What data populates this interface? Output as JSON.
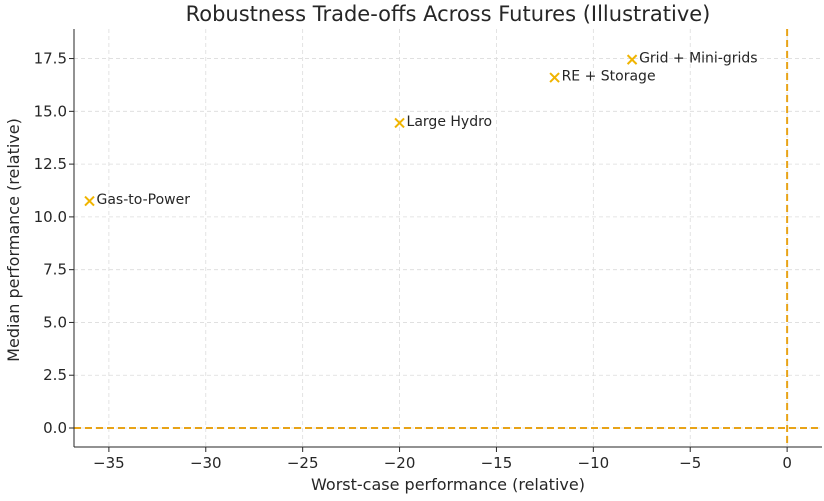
{
  "chart_data": {
    "type": "scatter",
    "title": "Robustness Trade-offs Across Futures (Illustrative)",
    "xlabel": "Worst-case performance (relative)",
    "ylabel": "Median performance (relative)",
    "xlim": [
      -36.8,
      1.8
    ],
    "ylim": [
      -0.9,
      18.9
    ],
    "xticks": [
      -35,
      -30,
      -25,
      -20,
      -15,
      -10,
      -5,
      0
    ],
    "xtick_labels": [
      "−35",
      "−30",
      "−25",
      "−20",
      "−15",
      "−10",
      "−5",
      "0"
    ],
    "yticks": [
      0,
      2.5,
      5,
      7.5,
      10,
      12.5,
      15,
      17.5
    ],
    "ytick_labels": [
      "0.0",
      "2.5",
      "5.0",
      "7.5",
      "10.0",
      "12.5",
      "15.0",
      "17.5"
    ],
    "grid": true,
    "marker": "x",
    "color": "#f0b400",
    "reference_lines": {
      "horizontal_y": 0,
      "vertical_x": 0,
      "color": "#e8a317",
      "style": "dashed"
    },
    "points": [
      {
        "label": "Gas-to-Power",
        "x": -36.0,
        "y": 10.75
      },
      {
        "label": "Large Hydro",
        "x": -20.0,
        "y": 14.45
      },
      {
        "label": "RE + Storage",
        "x": -12.0,
        "y": 16.6
      },
      {
        "label": "Grid + Mini-grids",
        "x": -8.0,
        "y": 17.45
      }
    ]
  }
}
